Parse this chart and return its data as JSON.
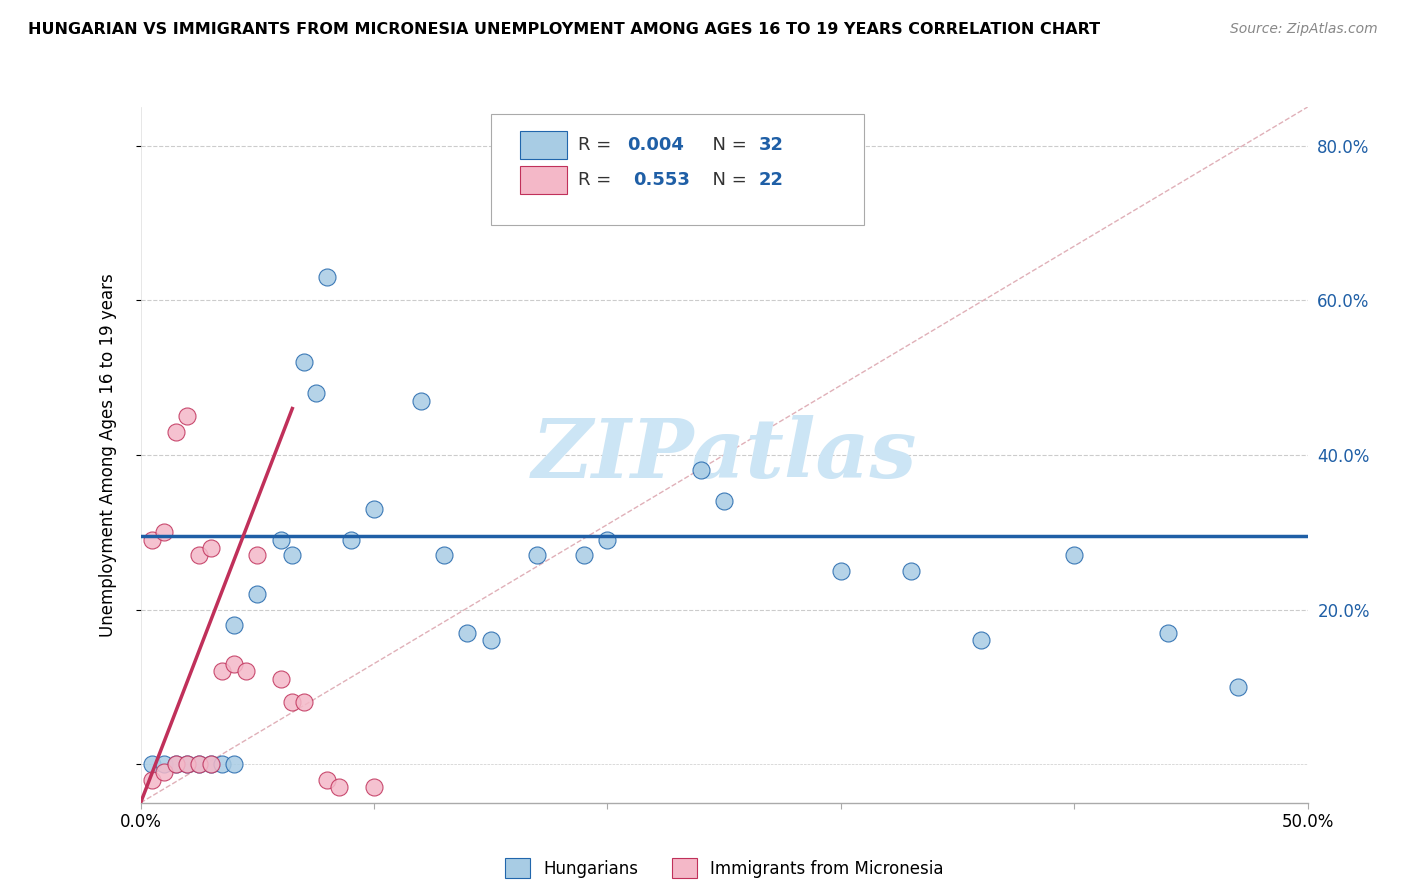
{
  "title": "HUNGARIAN VS IMMIGRANTS FROM MICRONESIA UNEMPLOYMENT AMONG AGES 16 TO 19 YEARS CORRELATION CHART",
  "source": "Source: ZipAtlas.com",
  "ylabel": "Unemployment Among Ages 16 to 19 years",
  "xlim": [
    0.0,
    0.5
  ],
  "ylim": [
    -0.05,
    0.85
  ],
  "xtick_positions": [
    0.0,
    0.1,
    0.2,
    0.3,
    0.4,
    0.5
  ],
  "ytick_positions": [
    0.0,
    0.2,
    0.4,
    0.6,
    0.8
  ],
  "blue_color": "#a8cce4",
  "blue_edge_color": "#2166ac",
  "pink_color": "#f4b8c8",
  "pink_edge_color": "#c0305a",
  "blue_line_color": "#1f5fa6",
  "pink_line_color": "#c0305a",
  "grid_color": "#cccccc",
  "diag_color": "#d0d0d0",
  "watermark_color": "#cce5f5",
  "blue_scatter": [
    [
      0.005,
      0.0
    ],
    [
      0.01,
      0.0
    ],
    [
      0.015,
      0.0
    ],
    [
      0.02,
      0.0
    ],
    [
      0.025,
      0.0
    ],
    [
      0.03,
      0.0
    ],
    [
      0.035,
      0.0
    ],
    [
      0.04,
      0.0
    ],
    [
      0.04,
      0.18
    ],
    [
      0.05,
      0.22
    ],
    [
      0.06,
      0.29
    ],
    [
      0.065,
      0.27
    ],
    [
      0.07,
      0.52
    ],
    [
      0.075,
      0.48
    ],
    [
      0.08,
      0.63
    ],
    [
      0.09,
      0.29
    ],
    [
      0.1,
      0.33
    ],
    [
      0.12,
      0.47
    ],
    [
      0.13,
      0.27
    ],
    [
      0.14,
      0.17
    ],
    [
      0.15,
      0.16
    ],
    [
      0.17,
      0.27
    ],
    [
      0.19,
      0.27
    ],
    [
      0.2,
      0.29
    ],
    [
      0.24,
      0.38
    ],
    [
      0.25,
      0.34
    ],
    [
      0.3,
      0.25
    ],
    [
      0.33,
      0.25
    ],
    [
      0.36,
      0.16
    ],
    [
      0.4,
      0.27
    ],
    [
      0.44,
      0.17
    ],
    [
      0.47,
      0.1
    ]
  ],
  "pink_scatter": [
    [
      0.005,
      -0.02
    ],
    [
      0.01,
      -0.01
    ],
    [
      0.015,
      0.0
    ],
    [
      0.02,
      0.0
    ],
    [
      0.025,
      0.0
    ],
    [
      0.03,
      0.0
    ],
    [
      0.005,
      0.29
    ],
    [
      0.01,
      0.3
    ],
    [
      0.015,
      0.43
    ],
    [
      0.02,
      0.45
    ],
    [
      0.025,
      0.27
    ],
    [
      0.03,
      0.28
    ],
    [
      0.035,
      0.12
    ],
    [
      0.04,
      0.13
    ],
    [
      0.045,
      0.12
    ],
    [
      0.05,
      0.27
    ],
    [
      0.06,
      0.11
    ],
    [
      0.065,
      0.08
    ],
    [
      0.07,
      0.08
    ],
    [
      0.08,
      -0.02
    ],
    [
      0.085,
      -0.03
    ],
    [
      0.1,
      -0.03
    ]
  ],
  "blue_trend_x": [
    0.0,
    0.5
  ],
  "blue_trend_y": [
    0.295,
    0.295
  ],
  "pink_trend_x": [
    0.0,
    0.065
  ],
  "pink_trend_y": [
    -0.05,
    0.46
  ]
}
